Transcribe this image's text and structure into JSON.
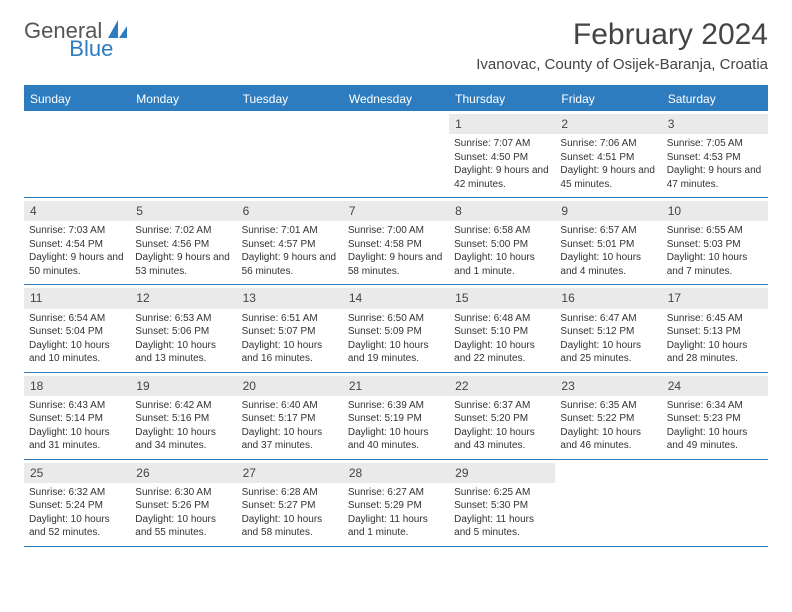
{
  "logo": {
    "general": "General",
    "blue": "Blue"
  },
  "title": "February 2024",
  "location": "Ivanovac, County of Osijek-Baranja, Croatia",
  "colors": {
    "header_bg": "#2e7cc0",
    "daynum_bg": "#eaeaea",
    "text": "#333333",
    "border": "#2e7cc0"
  },
  "weekdays": [
    "Sunday",
    "Monday",
    "Tuesday",
    "Wednesday",
    "Thursday",
    "Friday",
    "Saturday"
  ],
  "weeks": [
    [
      null,
      null,
      null,
      null,
      {
        "n": "1",
        "sunrise": "Sunrise: 7:07 AM",
        "sunset": "Sunset: 4:50 PM",
        "daylight": "Daylight: 9 hours and 42 minutes."
      },
      {
        "n": "2",
        "sunrise": "Sunrise: 7:06 AM",
        "sunset": "Sunset: 4:51 PM",
        "daylight": "Daylight: 9 hours and 45 minutes."
      },
      {
        "n": "3",
        "sunrise": "Sunrise: 7:05 AM",
        "sunset": "Sunset: 4:53 PM",
        "daylight": "Daylight: 9 hours and 47 minutes."
      }
    ],
    [
      {
        "n": "4",
        "sunrise": "Sunrise: 7:03 AM",
        "sunset": "Sunset: 4:54 PM",
        "daylight": "Daylight: 9 hours and 50 minutes."
      },
      {
        "n": "5",
        "sunrise": "Sunrise: 7:02 AM",
        "sunset": "Sunset: 4:56 PM",
        "daylight": "Daylight: 9 hours and 53 minutes."
      },
      {
        "n": "6",
        "sunrise": "Sunrise: 7:01 AM",
        "sunset": "Sunset: 4:57 PM",
        "daylight": "Daylight: 9 hours and 56 minutes."
      },
      {
        "n": "7",
        "sunrise": "Sunrise: 7:00 AM",
        "sunset": "Sunset: 4:58 PM",
        "daylight": "Daylight: 9 hours and 58 minutes."
      },
      {
        "n": "8",
        "sunrise": "Sunrise: 6:58 AM",
        "sunset": "Sunset: 5:00 PM",
        "daylight": "Daylight: 10 hours and 1 minute."
      },
      {
        "n": "9",
        "sunrise": "Sunrise: 6:57 AM",
        "sunset": "Sunset: 5:01 PM",
        "daylight": "Daylight: 10 hours and 4 minutes."
      },
      {
        "n": "10",
        "sunrise": "Sunrise: 6:55 AM",
        "sunset": "Sunset: 5:03 PM",
        "daylight": "Daylight: 10 hours and 7 minutes."
      }
    ],
    [
      {
        "n": "11",
        "sunrise": "Sunrise: 6:54 AM",
        "sunset": "Sunset: 5:04 PM",
        "daylight": "Daylight: 10 hours and 10 minutes."
      },
      {
        "n": "12",
        "sunrise": "Sunrise: 6:53 AM",
        "sunset": "Sunset: 5:06 PM",
        "daylight": "Daylight: 10 hours and 13 minutes."
      },
      {
        "n": "13",
        "sunrise": "Sunrise: 6:51 AM",
        "sunset": "Sunset: 5:07 PM",
        "daylight": "Daylight: 10 hours and 16 minutes."
      },
      {
        "n": "14",
        "sunrise": "Sunrise: 6:50 AM",
        "sunset": "Sunset: 5:09 PM",
        "daylight": "Daylight: 10 hours and 19 minutes."
      },
      {
        "n": "15",
        "sunrise": "Sunrise: 6:48 AM",
        "sunset": "Sunset: 5:10 PM",
        "daylight": "Daylight: 10 hours and 22 minutes."
      },
      {
        "n": "16",
        "sunrise": "Sunrise: 6:47 AM",
        "sunset": "Sunset: 5:12 PM",
        "daylight": "Daylight: 10 hours and 25 minutes."
      },
      {
        "n": "17",
        "sunrise": "Sunrise: 6:45 AM",
        "sunset": "Sunset: 5:13 PM",
        "daylight": "Daylight: 10 hours and 28 minutes."
      }
    ],
    [
      {
        "n": "18",
        "sunrise": "Sunrise: 6:43 AM",
        "sunset": "Sunset: 5:14 PM",
        "daylight": "Daylight: 10 hours and 31 minutes."
      },
      {
        "n": "19",
        "sunrise": "Sunrise: 6:42 AM",
        "sunset": "Sunset: 5:16 PM",
        "daylight": "Daylight: 10 hours and 34 minutes."
      },
      {
        "n": "20",
        "sunrise": "Sunrise: 6:40 AM",
        "sunset": "Sunset: 5:17 PM",
        "daylight": "Daylight: 10 hours and 37 minutes."
      },
      {
        "n": "21",
        "sunrise": "Sunrise: 6:39 AM",
        "sunset": "Sunset: 5:19 PM",
        "daylight": "Daylight: 10 hours and 40 minutes."
      },
      {
        "n": "22",
        "sunrise": "Sunrise: 6:37 AM",
        "sunset": "Sunset: 5:20 PM",
        "daylight": "Daylight: 10 hours and 43 minutes."
      },
      {
        "n": "23",
        "sunrise": "Sunrise: 6:35 AM",
        "sunset": "Sunset: 5:22 PM",
        "daylight": "Daylight: 10 hours and 46 minutes."
      },
      {
        "n": "24",
        "sunrise": "Sunrise: 6:34 AM",
        "sunset": "Sunset: 5:23 PM",
        "daylight": "Daylight: 10 hours and 49 minutes."
      }
    ],
    [
      {
        "n": "25",
        "sunrise": "Sunrise: 6:32 AM",
        "sunset": "Sunset: 5:24 PM",
        "daylight": "Daylight: 10 hours and 52 minutes."
      },
      {
        "n": "26",
        "sunrise": "Sunrise: 6:30 AM",
        "sunset": "Sunset: 5:26 PM",
        "daylight": "Daylight: 10 hours and 55 minutes."
      },
      {
        "n": "27",
        "sunrise": "Sunrise: 6:28 AM",
        "sunset": "Sunset: 5:27 PM",
        "daylight": "Daylight: 10 hours and 58 minutes."
      },
      {
        "n": "28",
        "sunrise": "Sunrise: 6:27 AM",
        "sunset": "Sunset: 5:29 PM",
        "daylight": "Daylight: 11 hours and 1 minute."
      },
      {
        "n": "29",
        "sunrise": "Sunrise: 6:25 AM",
        "sunset": "Sunset: 5:30 PM",
        "daylight": "Daylight: 11 hours and 5 minutes."
      },
      null,
      null
    ]
  ]
}
